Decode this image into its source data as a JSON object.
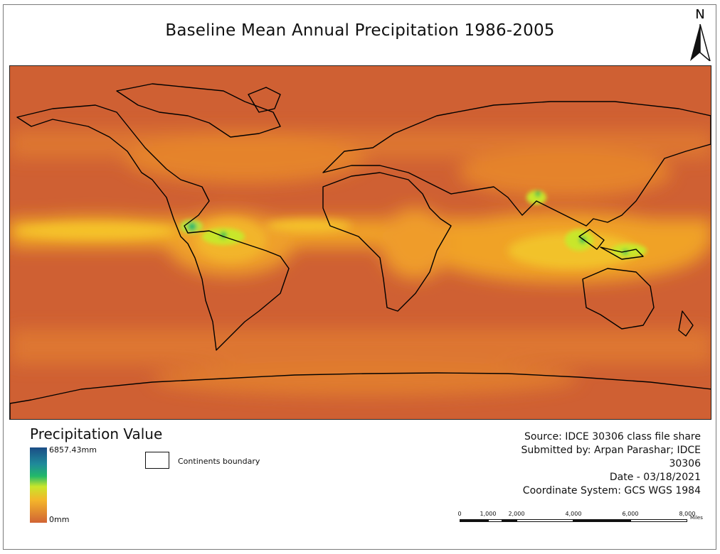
{
  "title": "Baseline Mean Annual Precipitation 1986-2005",
  "north_arrow": {
    "label": "N",
    "icon": "north-arrow-icon"
  },
  "legend": {
    "title": "Precipitation Value",
    "max_label": "6857.43mm",
    "min_label": "0mm",
    "ramp_colors": [
      "#1b4d86",
      "#1f8a9a",
      "#22b86a",
      "#c9e62a",
      "#f4b52a",
      "#d16434"
    ],
    "boundary_label": "Continents boundary"
  },
  "info": {
    "source": "Source: IDCE 30306 class file share",
    "submitted": "Submitted by: Arpan Parashar; IDCE 30306",
    "date": "Date - 03/18/2021",
    "crs": "Coordinate System: GCS WGS 1984"
  },
  "scale_bar": {
    "labels": [
      "0",
      "1,000",
      "2,000",
      "4,000",
      "6,000",
      "8,000"
    ],
    "unit": "Miles"
  },
  "colors": {
    "dry": "#cf6033",
    "mid": "#f0a227",
    "wet": "#e9e031",
    "very_wet": "#2fc04d",
    "extreme": "#1d8fa0"
  }
}
